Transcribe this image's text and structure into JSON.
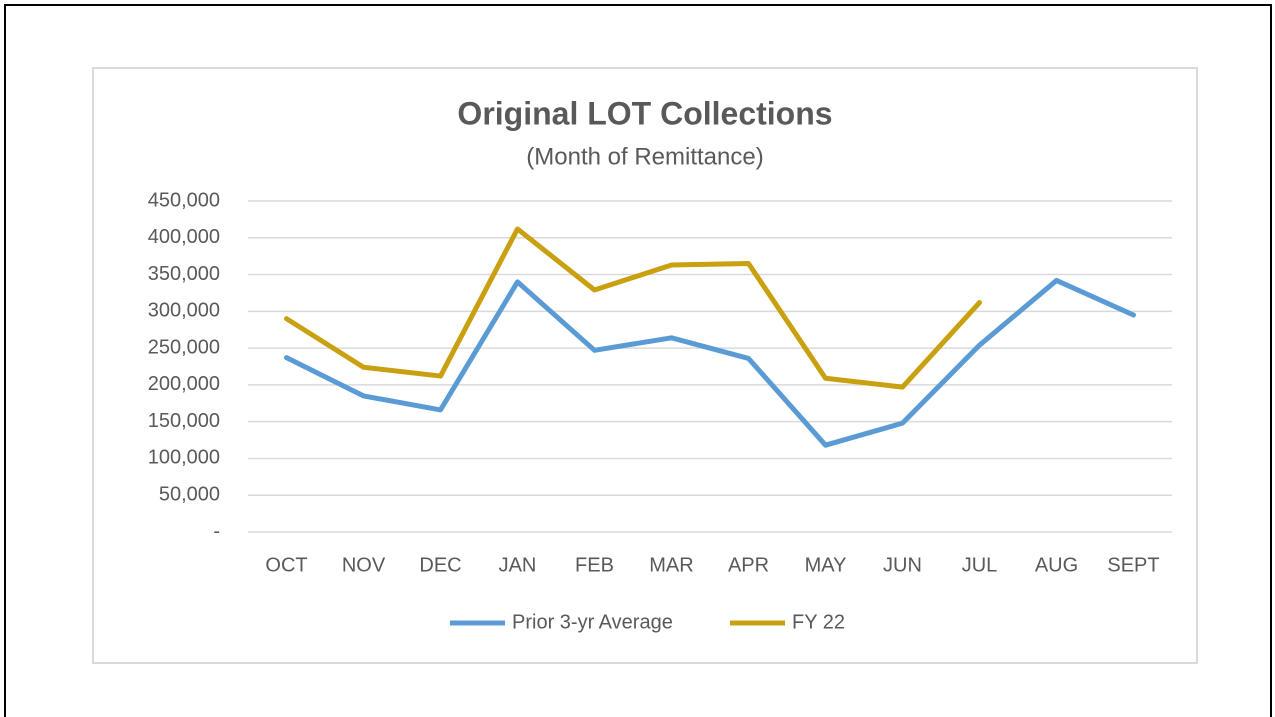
{
  "chart_data": {
    "type": "line",
    "title": "Original LOT Collections",
    "subtitle": "(Month of Remittance)",
    "categories": [
      "OCT",
      "NOV",
      "DEC",
      "JAN",
      "FEB",
      "MAR",
      "APR",
      "MAY",
      "JUN",
      "JUL",
      "AUG",
      "SEPT"
    ],
    "series": [
      {
        "name": "Prior 3-yr Average",
        "color": "#5b9bd5",
        "values": [
          237000,
          185000,
          166000,
          340000,
          247000,
          264000,
          236000,
          118000,
          148000,
          254000,
          342000,
          295000
        ]
      },
      {
        "name": "FY 22",
        "color": "#c9a00f",
        "values": [
          290000,
          224000,
          212000,
          412000,
          329000,
          363000,
          365000,
          209000,
          197000,
          312000,
          null,
          null
        ]
      }
    ],
    "ylim": [
      0,
      450000
    ],
    "yticks": [
      {
        "value": 0,
        "label": "-"
      },
      {
        "value": 50000,
        "label": "50,000"
      },
      {
        "value": 100000,
        "label": "100,000"
      },
      {
        "value": 150000,
        "label": "150,000"
      },
      {
        "value": 200000,
        "label": "200,000"
      },
      {
        "value": 250000,
        "label": "250,000"
      },
      {
        "value": 300000,
        "label": "300,000"
      },
      {
        "value": 350000,
        "label": "350,000"
      },
      {
        "value": 400000,
        "label": "400,000"
      },
      {
        "value": 450000,
        "label": "450,000"
      }
    ],
    "grid": true,
    "legend": "bottom"
  }
}
